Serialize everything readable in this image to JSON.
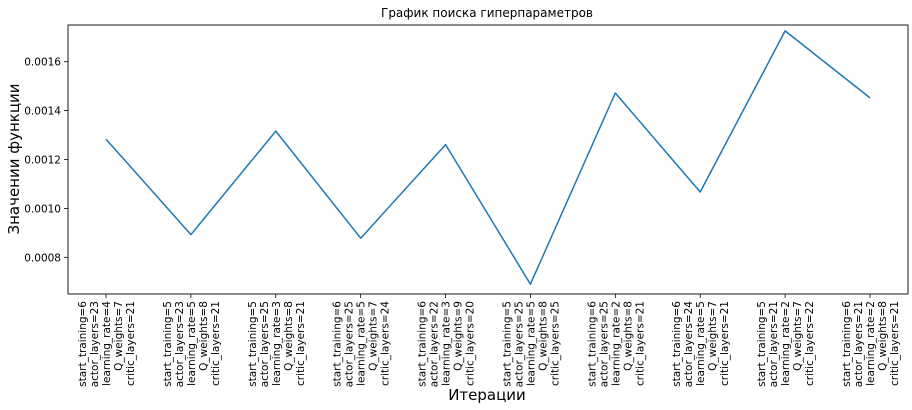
{
  "chart_data": {
    "type": "line",
    "title": "График поиска гиперпараметров",
    "xlabel": "Итерации",
    "ylabel": "Значении функции",
    "ylim": [
      0.00065,
      0.00175
    ],
    "yticks": [
      0.0008,
      0.001,
      0.0012,
      0.0014,
      0.0016
    ],
    "ytick_labels": [
      "0.0008",
      "0.0010",
      "0.0012",
      "0.0014",
      "0.0016"
    ],
    "grid": false,
    "categories": [
      [
        "start_training=6",
        "actor_layers=23",
        "learning_rate=4",
        "Q_weights=7",
        "critic_layers=21"
      ],
      [
        "start_training=5",
        "actor_layers=23",
        "learning_rate=5",
        "Q_weights=8",
        "critic_layers=21"
      ],
      [
        "start_training=5",
        "actor_layers=25",
        "learning_rate=3",
        "Q_weights=8",
        "critic_layers=21"
      ],
      [
        "start_training=6",
        "actor_layers=25",
        "learning_rate=5",
        "Q_weights=7",
        "critic_layers=24"
      ],
      [
        "start_training=6",
        "actor_layers=22",
        "learning_rate=3",
        "Q_weights=9",
        "critic_layers=20"
      ],
      [
        "start_training=5",
        "actor_layers=25",
        "learning_rate=5",
        "Q_weights=8",
        "critic_layers=25"
      ],
      [
        "start_training=6",
        "actor_layers=25",
        "learning_rate=2",
        "Q_weights=8",
        "critic_layers=21"
      ],
      [
        "start_training=6",
        "actor_layers=24",
        "learning_rate=5",
        "Q_weights=7",
        "critic_layers=21"
      ],
      [
        "start_training=5",
        "actor_layers=21",
        "learning_rate=2",
        "Q_weights=7",
        "critic_layers=22"
      ],
      [
        "start_training=6",
        "actor_layers=21",
        "learning_rate=2",
        "Q_weights=8",
        "critic_layers=21"
      ]
    ],
    "series": [
      {
        "color": "#1f77b4",
        "values": [
          0.001283,
          0.000893,
          0.001316,
          0.000878,
          0.001261,
          0.00069,
          0.001472,
          0.001067,
          0.001726,
          0.001452
        ]
      }
    ]
  }
}
